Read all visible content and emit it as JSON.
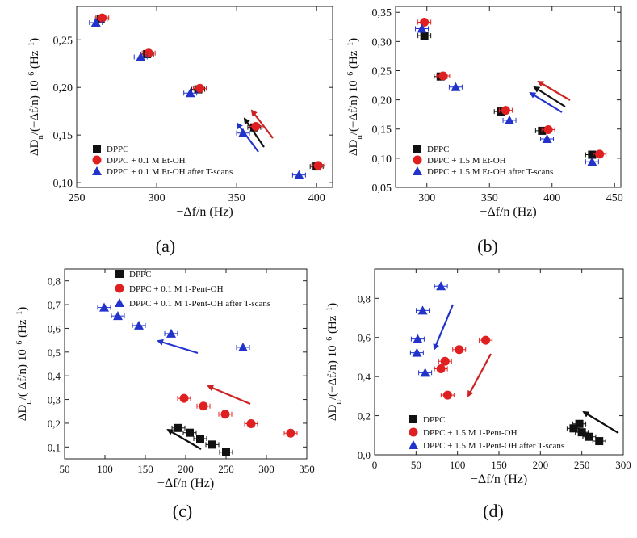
{
  "figure": {
    "panels": [
      "(a)",
      "(b)",
      "(c)",
      "(d)"
    ]
  },
  "chart_data": [
    {
      "id": "a",
      "type": "scatter",
      "panel_label": "(a)",
      "xlabel": "−Δf/n (Hz)",
      "ylabel": "ΔDn/(−Δf/n) 10−6 (Hz−1)",
      "xlim": [
        250,
        410
      ],
      "ylim": [
        0.095,
        0.285
      ],
      "xticks": [
        250,
        300,
        350,
        400
      ],
      "xtick_labels": [
        "250",
        "300",
        "350",
        "400"
      ],
      "yticks": [
        0.1,
        0.15,
        0.2,
        0.25
      ],
      "ytick_labels": [
        "0,10",
        "0,15",
        "0,20",
        "0,25"
      ],
      "grid": false,
      "legend_position": "bottom-left",
      "series": [
        {
          "name": "DPPC",
          "marker": "square",
          "color": "#111111",
          "points": [
            [
              265,
              0.272
            ],
            [
              294,
              0.235
            ],
            [
              326,
              0.198
            ],
            [
              361,
              0.158
            ],
            [
              400,
              0.117
            ]
          ]
        },
        {
          "name": "DPPC + 0.1 M Et-OH",
          "marker": "circle",
          "color": "#e02020",
          "points": [
            [
              266,
              0.273
            ],
            [
              295,
              0.236
            ],
            [
              327,
              0.199
            ],
            [
              362,
              0.159
            ],
            [
              401,
              0.118
            ]
          ]
        },
        {
          "name": "DPPC + 0.1 M Et-OH after T-scans",
          "marker": "triangle",
          "color": "#2233cc",
          "points": [
            [
              262,
              0.268
            ],
            [
              290,
              0.232
            ],
            [
              321,
              0.194
            ],
            [
              354,
              0.152
            ],
            [
              389,
              0.108
            ]
          ]
        }
      ]
    },
    {
      "id": "b",
      "type": "scatter",
      "panel_label": "(b)",
      "xlabel": "−Δf/n (Hz)",
      "ylabel": "ΔDn/(−Δf/n) 10−6 (Hz−1)",
      "xlim": [
        275,
        455
      ],
      "ylim": [
        0.05,
        0.36
      ],
      "xticks": [
        300,
        350,
        400,
        450
      ],
      "xtick_labels": [
        "300",
        "350",
        "400",
        "450"
      ],
      "yticks": [
        0.05,
        0.1,
        0.15,
        0.2,
        0.25,
        0.3,
        0.35
      ],
      "ytick_labels": [
        "0,05",
        "0,10",
        "0,15",
        "0,20",
        "0,25",
        "0,30",
        "0,35"
      ],
      "grid": false,
      "legend_position": "bottom-left",
      "series": [
        {
          "name": "DPPC",
          "marker": "square",
          "color": "#111111",
          "points": [
            [
              298,
              0.31
            ],
            [
              311,
              0.24
            ],
            [
              359,
              0.18
            ],
            [
              392,
              0.147
            ],
            [
              432,
              0.106
            ]
          ]
        },
        {
          "name": "DPPC + 1.5 M Et-OH",
          "marker": "circle",
          "color": "#e02020",
          "points": [
            [
              298,
              0.333
            ],
            [
              313,
              0.241
            ],
            [
              363,
              0.182
            ],
            [
              397,
              0.149
            ],
            [
              438,
              0.107
            ]
          ]
        },
        {
          "name": "DPPC + 1.5 M Et-OH after T-scans",
          "marker": "triangle",
          "color": "#2233cc",
          "points": [
            [
              296,
              0.322
            ],
            [
              323,
              0.222
            ],
            [
              366,
              0.165
            ],
            [
              396,
              0.133
            ],
            [
              432,
              0.094
            ]
          ]
        }
      ]
    },
    {
      "id": "c",
      "type": "scatter",
      "panel_label": "(c)",
      "xlabel": "−Δf/n (Hz)",
      "ylabel": "ΔDn/( Δf/n) 10−6 (Hz−1)",
      "xlim": [
        50,
        350
      ],
      "ylim": [
        0.05,
        0.85
      ],
      "xticks": [
        50,
        100,
        150,
        200,
        250,
        300,
        350
      ],
      "xtick_labels": [
        "50",
        "100",
        "150",
        "200",
        "250",
        "300",
        "350"
      ],
      "yticks": [
        0.1,
        0.2,
        0.3,
        0.4,
        0.5,
        0.6,
        0.7,
        0.8
      ],
      "ytick_labels": [
        "0,1",
        "0,2",
        "0,3",
        "0,4",
        "0,5",
        "0,6",
        "0,7",
        "0,8"
      ],
      "grid": false,
      "legend_position": "top-right",
      "series": [
        {
          "name": "DPPC",
          "marker": "square",
          "color": "#111111",
          "points": [
            [
              191,
              0.18
            ],
            [
              205,
              0.16
            ],
            [
              218,
              0.135
            ],
            [
              233,
              0.11
            ],
            [
              250,
              0.078
            ]
          ]
        },
        {
          "name": "DPPC + 0.1 M 1-Pent-OH",
          "marker": "circle",
          "color": "#e02020",
          "points": [
            [
              198,
              0.305
            ],
            [
              222,
              0.272
            ],
            [
              249,
              0.238
            ],
            [
              281,
              0.198
            ],
            [
              330,
              0.158
            ]
          ]
        },
        {
          "name": "DPPC + 0.1 M 1-Pent-OH after T-scans",
          "marker": "triangle",
          "color": "#2233cc",
          "points": [
            [
              99,
              0.688
            ],
            [
              116,
              0.652
            ],
            [
              142,
              0.612
            ],
            [
              182,
              0.578
            ],
            [
              271,
              0.52
            ]
          ]
        }
      ]
    },
    {
      "id": "d",
      "type": "scatter",
      "panel_label": "(d)",
      "xlabel": "−Δf/n (Hz)",
      "ylabel": "ΔDn/( Δf/n) 10−6 (Hz−1)",
      "xlim": [
        0,
        300
      ],
      "ylim": [
        0.0,
        0.95
      ],
      "xticks": [
        0,
        50,
        100,
        150,
        200,
        250,
        300
      ],
      "xtick_labels": [
        "0",
        "50",
        "100",
        "150",
        "200",
        "250",
        "300"
      ],
      "yticks": [
        0.0,
        0.2,
        0.4,
        0.6,
        0.8
      ],
      "ytick_labels": [
        "0,0",
        "0,2",
        "0,4",
        "0,6",
        "0,8"
      ],
      "grid": false,
      "legend_position": "bottom-left",
      "series": [
        {
          "name": "DPPC",
          "marker": "square",
          "color": "#111111",
          "points": [
            [
              240,
              0.135
            ],
            [
              247,
              0.158
            ],
            [
              250,
              0.115
            ],
            [
              259,
              0.092
            ],
            [
              271,
              0.07
            ]
          ]
        },
        {
          "name": "DPPC + 1.5 M 1-Pent-OH",
          "marker": "circle",
          "color": "#e02020",
          "points": [
            [
              88,
              0.305
            ],
            [
              80,
              0.44
            ],
            [
              85,
              0.478
            ],
            [
              102,
              0.538
            ],
            [
              134,
              0.586
            ]
          ]
        },
        {
          "name": "DPPC + 1.5 M 1-Pent-OH after T-scans",
          "marker": "triangle",
          "color": "#2233cc",
          "points": [
            [
              51,
              0.522
            ],
            [
              52,
              0.592
            ],
            [
              61,
              0.42
            ],
            [
              58,
              0.738
            ],
            [
              80,
              0.862
            ]
          ]
        }
      ]
    }
  ]
}
